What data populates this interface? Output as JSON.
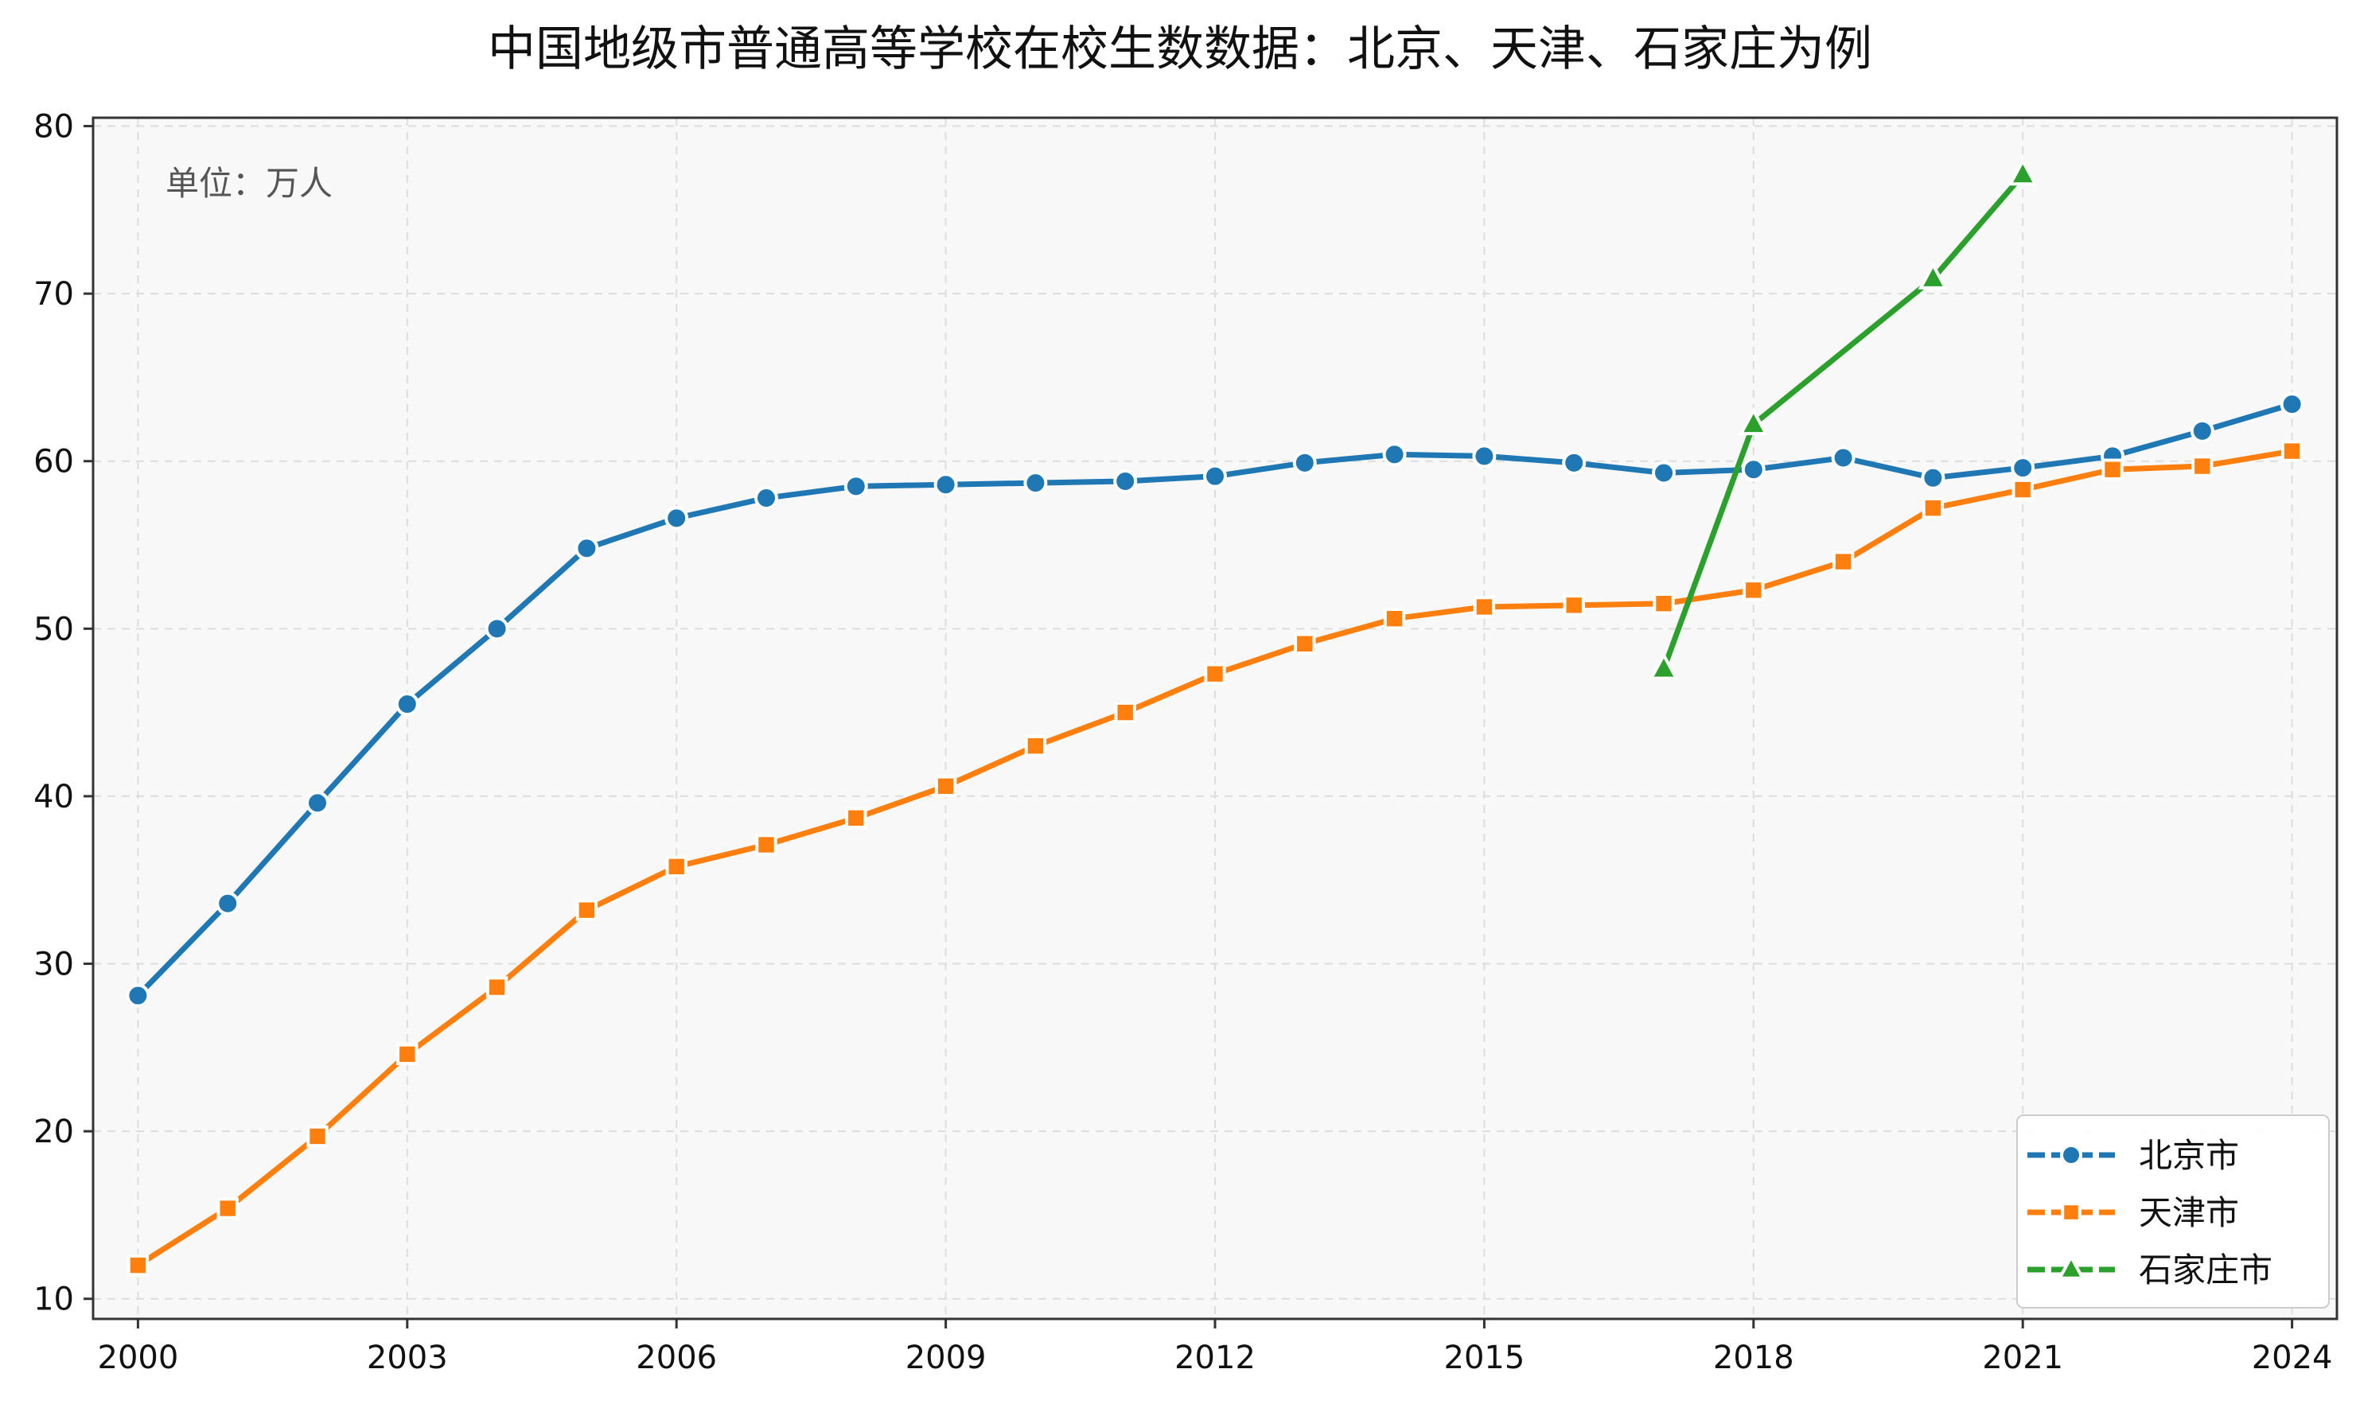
{
  "chart_data": {
    "type": "line",
    "title": "中国地级市普通高等学校在校生数数据：北京、天津、石家庄为例",
    "annotation": "单位：万人",
    "xlabel": "",
    "ylabel": "",
    "xlim": [
      1999.5,
      2024.5
    ],
    "ylim": [
      8.8,
      80.5
    ],
    "x_ticks": [
      2000,
      2003,
      2006,
      2009,
      2012,
      2015,
      2018,
      2021,
      2024
    ],
    "y_ticks": [
      10,
      20,
      30,
      40,
      50,
      60,
      70,
      80
    ],
    "grid": true,
    "legend_position": "bottom-right",
    "series": [
      {
        "name": "北京市",
        "color": "#1f77b4",
        "marker": "circle",
        "x": [
          2000,
          2001,
          2002,
          2003,
          2004,
          2005,
          2006,
          2007,
          2008,
          2009,
          2010,
          2011,
          2012,
          2013,
          2014,
          2015,
          2016,
          2017,
          2018,
          2019,
          2020,
          2021,
          2022,
          2023,
          2024
        ],
        "values": [
          28.1,
          33.6,
          39.6,
          45.5,
          50.0,
          54.8,
          56.6,
          57.8,
          58.5,
          58.6,
          58.7,
          58.8,
          59.1,
          59.9,
          60.4,
          60.3,
          59.9,
          59.3,
          59.5,
          60.2,
          59.0,
          59.6,
          60.3,
          61.8,
          63.4
        ]
      },
      {
        "name": "天津市",
        "color": "#ff7f0e",
        "marker": "square",
        "x": [
          2000,
          2001,
          2002,
          2003,
          2004,
          2005,
          2006,
          2007,
          2008,
          2009,
          2010,
          2011,
          2012,
          2013,
          2014,
          2015,
          2016,
          2017,
          2018,
          2019,
          2020,
          2021,
          2022,
          2023,
          2024
        ],
        "values": [
          12.0,
          15.4,
          19.7,
          24.6,
          28.6,
          33.2,
          35.8,
          37.1,
          38.7,
          40.6,
          43.0,
          45.0,
          47.3,
          49.1,
          50.6,
          51.3,
          51.4,
          51.5,
          52.3,
          54.0,
          57.2,
          58.3,
          59.5,
          59.7,
          60.6
        ]
      },
      {
        "name": "石家庄市",
        "color": "#2ca02c",
        "marker": "triangle",
        "x": [
          2017,
          2018,
          2020,
          2021
        ],
        "values": [
          47.6,
          62.2,
          70.9,
          77.1
        ]
      }
    ]
  }
}
